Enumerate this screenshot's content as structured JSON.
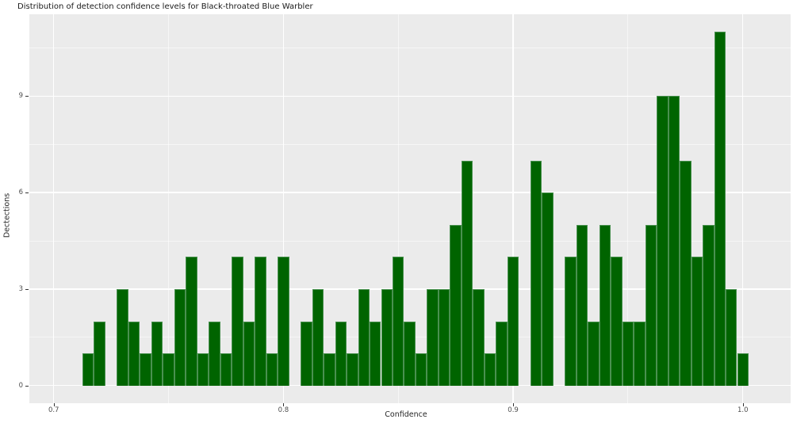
{
  "chart_data": {
    "type": "bar",
    "subtype": "histogram",
    "title": "Distribution of detection confidence levels for Black-throated Blue Warbler",
    "xlabel": "Confidence",
    "ylabel": "Dectections",
    "bin_start": 0.7125,
    "bin_width": 0.005,
    "counts": [
      1,
      2,
      0,
      3,
      2,
      1,
      2,
      1,
      3,
      4,
      1,
      2,
      1,
      4,
      2,
      4,
      1,
      4,
      0,
      2,
      3,
      1,
      2,
      1,
      3,
      2,
      3,
      4,
      2,
      1,
      3,
      3,
      5,
      7,
      3,
      1,
      2,
      4,
      0,
      7,
      6,
      0,
      4,
      5,
      2,
      5,
      4,
      2,
      2,
      5,
      9,
      9,
      7,
      4,
      5,
      11,
      3,
      1
    ],
    "x_ticks": [
      0.7,
      0.8,
      0.9,
      1.0
    ],
    "x_tick_labels": [
      "0.7",
      "0.8",
      "0.9",
      "1.0"
    ],
    "x_minor_ticks": [
      0.75,
      0.85,
      0.95
    ],
    "y_ticks": [
      0,
      3,
      6,
      9
    ],
    "y_tick_labels": [
      "0",
      "3",
      "6",
      "9"
    ],
    "y_minor_ticks": [
      1.5,
      4.5,
      7.5,
      10.5
    ],
    "xlim": [
      0.6894,
      1.0208
    ],
    "ylim": [
      -0.55,
      11.55
    ],
    "grid": true,
    "legend": "none",
    "colors": {
      "bar_fill": "#006400",
      "bar_edge": "#4a9150",
      "panel_bg": "#ebebeb",
      "grid_line": "#ffffff",
      "tick_mark": "#333333",
      "tick_text": "#4d4d4d",
      "axis_title_text": "#262626",
      "title_text": "#1a1a1a",
      "figure_bg": "#ffffff"
    }
  }
}
